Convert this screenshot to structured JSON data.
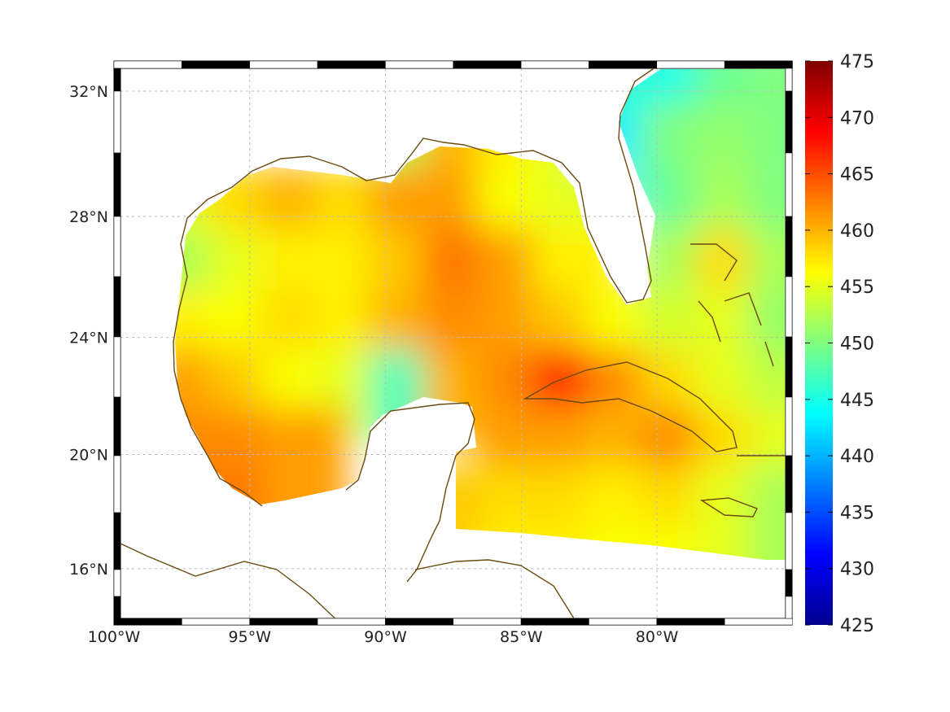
{
  "chart_data": {
    "type": "heatmap",
    "title": "",
    "xlabel": "",
    "ylabel": "",
    "projection": "mercator",
    "xlim": [
      -100,
      -75
    ],
    "ylim": [
      14.2,
      33
    ],
    "grid": true,
    "x_ticks": [
      -100,
      -95,
      -90,
      -85,
      -80
    ],
    "x_tick_labels": [
      "100°W",
      "95°W",
      "90°W",
      "85°W",
      "80°W"
    ],
    "y_ticks": [
      16,
      20,
      24,
      28,
      32
    ],
    "y_tick_labels": [
      "16°N",
      "20°N",
      "24°N",
      "28°N",
      "32°N"
    ],
    "colormap": "jet",
    "colorbar": {
      "range": [
        425,
        475
      ],
      "ticks": [
        425,
        430,
        435,
        440,
        445,
        450,
        455,
        460,
        465,
        470,
        475
      ],
      "tick_labels": [
        "425",
        "430",
        "435",
        "440",
        "445",
        "450",
        "455",
        "460",
        "465",
        "470",
        "475"
      ],
      "placement": "right"
    },
    "grid_lon": [
      -99,
      -97,
      -95,
      -93,
      -91,
      -89,
      -87,
      -85,
      -83,
      -81,
      -79,
      -77,
      -75
    ],
    "grid_lat": [
      32,
      30,
      28,
      26,
      24,
      22,
      20,
      18,
      16
    ],
    "values": [
      [
        null,
        null,
        null,
        null,
        null,
        null,
        null,
        null,
        null,
        446,
        445,
        449,
        450
      ],
      [
        null,
        null,
        null,
        null,
        null,
        452,
        460,
        457,
        455,
        443,
        450,
        451,
        450
      ],
      [
        null,
        455,
        458,
        460,
        458,
        461,
        461,
        456,
        455,
        null,
        449,
        452,
        450
      ],
      [
        null,
        452,
        455,
        457,
        457,
        459,
        463,
        461,
        457,
        null,
        452,
        458,
        452
      ],
      [
        null,
        457,
        456,
        458,
        457,
        460,
        462,
        461,
        459,
        456,
        454,
        455,
        451
      ],
      [
        null,
        461,
        459,
        456,
        455,
        447,
        460,
        462,
        467,
        462,
        458,
        455,
        453
      ],
      [
        null,
        462,
        462,
        461,
        null,
        null,
        null,
        461,
        461,
        460,
        462,
        458,
        455
      ],
      [
        null,
        null,
        463,
        461,
        null,
        null,
        459,
        458,
        458,
        457,
        458,
        455,
        452
      ],
      [
        null,
        null,
        null,
        null,
        null,
        null,
        null,
        457,
        457,
        456,
        456,
        455,
        452
      ]
    ],
    "missing_value_meaning": "land / no data (white)"
  }
}
